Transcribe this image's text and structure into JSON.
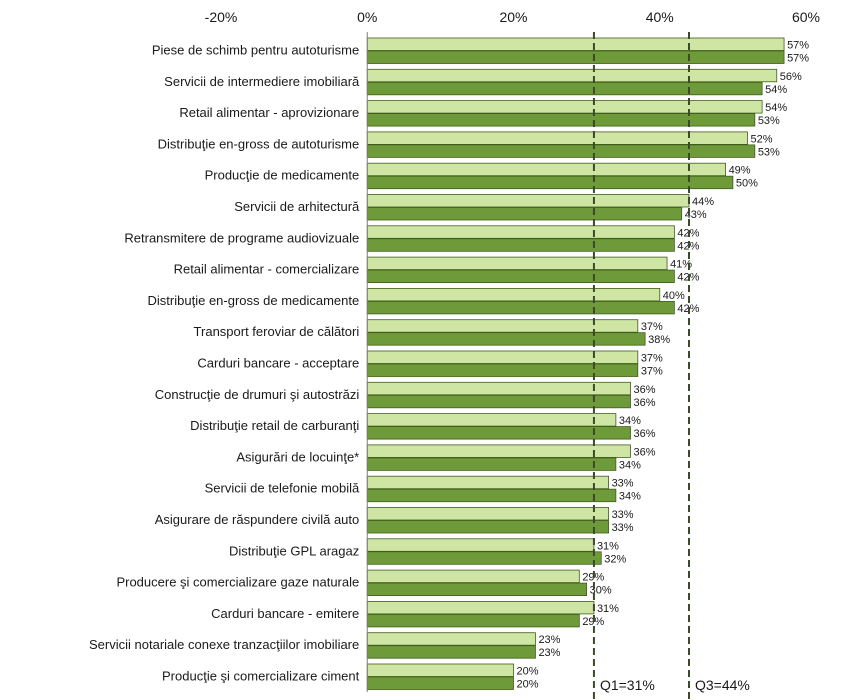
{
  "chart_data": {
    "type": "bar",
    "orientation": "horizontal",
    "xlim": [
      -20,
      60
    ],
    "ticks": [
      -20,
      0,
      20,
      40,
      60
    ],
    "tick_labels": [
      "-20%",
      "0%",
      "20%",
      "40%",
      "60%"
    ],
    "categories": [
      "Piese de schimb pentru autoturisme",
      "Servicii de intermediere imobiliară",
      "Retail alimentar - aprovizionare",
      "Distribuţie en-gross de autoturisme",
      "Producţie de medicamente",
      "Servicii de arhitectură",
      "Retransmitere de programe audiovizuale",
      "Retail alimentar - comercializare",
      "Distribuţie en-gross de medicamente",
      "Transport feroviar de călători",
      "Carduri bancare - acceptare",
      "Construcţie de drumuri şi autostrăzi",
      "Distribuţie retail de carburanţi",
      "Asigurări de locuinţe*",
      "Servicii de telefonie mobilă",
      "Asigurare de răspundere civilă auto",
      "Distribuţie GPL aragaz",
      "Producere şi comercializare gaze naturale",
      "Carduri bancare - emitere",
      "Servicii notariale conexe tranzacţiilor imobiliare",
      "Producţie şi comercializare ciment"
    ],
    "series": [
      {
        "values": [
          57,
          56,
          54,
          52,
          49,
          44,
          42,
          41,
          40,
          37,
          37,
          36,
          34,
          36,
          33,
          33,
          31,
          29,
          31,
          23,
          20
        ],
        "labels": [
          "57%",
          "56%",
          "54%",
          "52%",
          "49%",
          "44%",
          "42%",
          "41%",
          "40%",
          "37%",
          "37%",
          "36%",
          "34%",
          "36%",
          "33%",
          "33%",
          "31%",
          "29%",
          "31%",
          "23%",
          "20%"
        ],
        "color": "#cfe5a3"
      },
      {
        "values": [
          57,
          54,
          53,
          53,
          50,
          43,
          42,
          42,
          42,
          38,
          37,
          36,
          36,
          34,
          34,
          33,
          32,
          30,
          29,
          23,
          20
        ],
        "labels": [
          "57%",
          "54%",
          "53%",
          "53%",
          "50%",
          "43%",
          "42%",
          "42%",
          "42%",
          "38%",
          "37%",
          "36%",
          "36%",
          "34%",
          "34%",
          "33%",
          "32%",
          "30%",
          "29%",
          "23%",
          "20%"
        ],
        "color": "#6f9a3a"
      }
    ],
    "reference_lines": [
      {
        "value": 31,
        "label": "Q1=31%"
      },
      {
        "value": 44,
        "label": "Q3=44%"
      }
    ],
    "grid": false
  }
}
